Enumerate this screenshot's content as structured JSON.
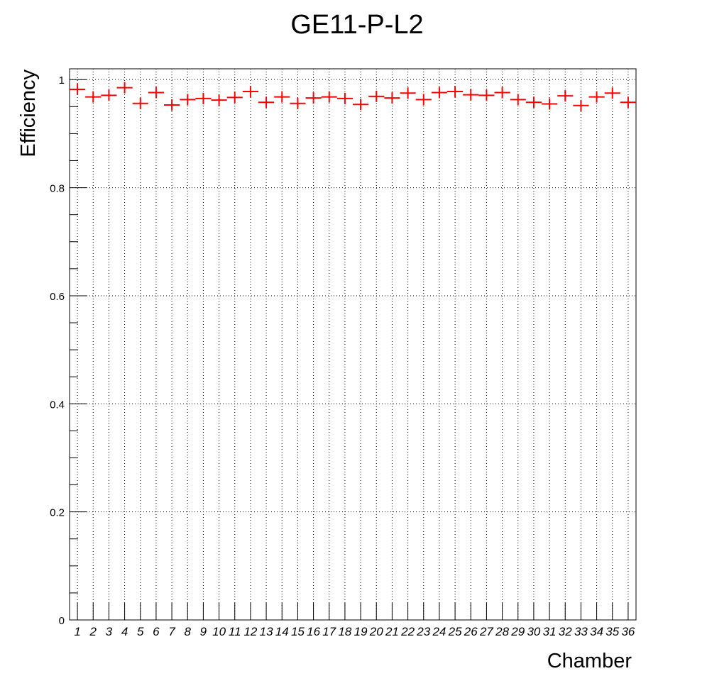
{
  "chart_data": {
    "type": "scatter",
    "title": "GE11-P-L2",
    "xlabel": "Chamber",
    "ylabel": "Efficiency",
    "categories": [
      "1",
      "2",
      "3",
      "4",
      "5",
      "6",
      "7",
      "8",
      "9",
      "10",
      "11",
      "12",
      "13",
      "14",
      "15",
      "16",
      "17",
      "18",
      "19",
      "20",
      "21",
      "22",
      "23",
      "24",
      "25",
      "26",
      "27",
      "28",
      "29",
      "30",
      "31",
      "32",
      "33",
      "34",
      "35",
      "36"
    ],
    "values": [
      0.982,
      0.968,
      0.971,
      0.985,
      0.956,
      0.976,
      0.953,
      0.963,
      0.965,
      0.962,
      0.967,
      0.978,
      0.958,
      0.968,
      0.956,
      0.966,
      0.968,
      0.965,
      0.954,
      0.969,
      0.966,
      0.975,
      0.963,
      0.976,
      0.978,
      0.972,
      0.971,
      0.976,
      0.963,
      0.958,
      0.955,
      0.97,
      0.952,
      0.968,
      0.975,
      0.958
    ],
    "ylim": [
      0,
      1.02
    ],
    "yticks": [
      "0",
      "0.2",
      "0.4",
      "0.6",
      "0.8",
      "1"
    ],
    "grid": true,
    "marker_color": "#ff0000",
    "error_bars": "horizontal (bin width)"
  }
}
